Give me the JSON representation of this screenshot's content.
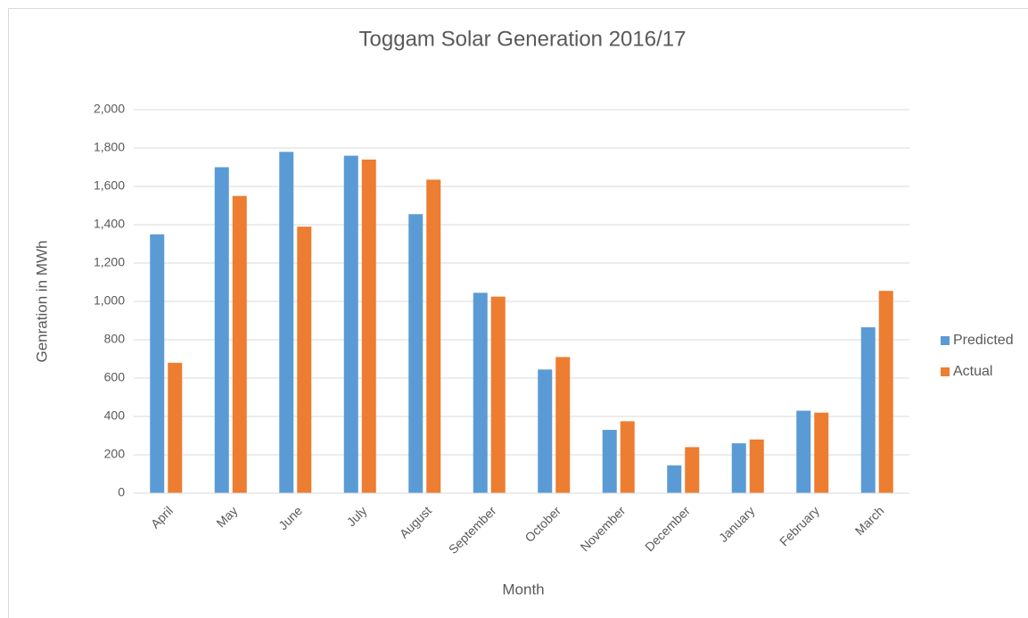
{
  "chart_data": {
    "type": "bar",
    "title": "Toggam Solar Generation 2016/17",
    "x_label": "Month",
    "y_label": "Genration in MWh",
    "categories": [
      "April",
      "May",
      "June",
      "July",
      "August",
      "September",
      "October",
      "November",
      "December",
      "January",
      "February",
      "March"
    ],
    "series": [
      {
        "name": "Predicted",
        "color": "#5b9bd5",
        "values": [
          1350,
          1700,
          1780,
          1760,
          1455,
          1045,
          645,
          330,
          145,
          260,
          430,
          865
        ]
      },
      {
        "name": "Actual",
        "color": "#ed7d31",
        "values": [
          680,
          1550,
          1390,
          1740,
          1635,
          1025,
          710,
          375,
          240,
          280,
          420,
          1055
        ]
      }
    ],
    "ylim": [
      0,
      2000
    ],
    "yticks": [
      0,
      200,
      400,
      600,
      800,
      {
        "value": 1000,
        "label": "1,000"
      },
      {
        "value": 1200,
        "label": "1,200"
      },
      {
        "value": 1400,
        "label": "1,400"
      },
      {
        "value": 1600,
        "label": "1,600"
      },
      {
        "value": 1800,
        "label": "1,800"
      },
      {
        "value": 2000,
        "label": "2,000"
      }
    ],
    "grid": true,
    "legend": "right"
  }
}
